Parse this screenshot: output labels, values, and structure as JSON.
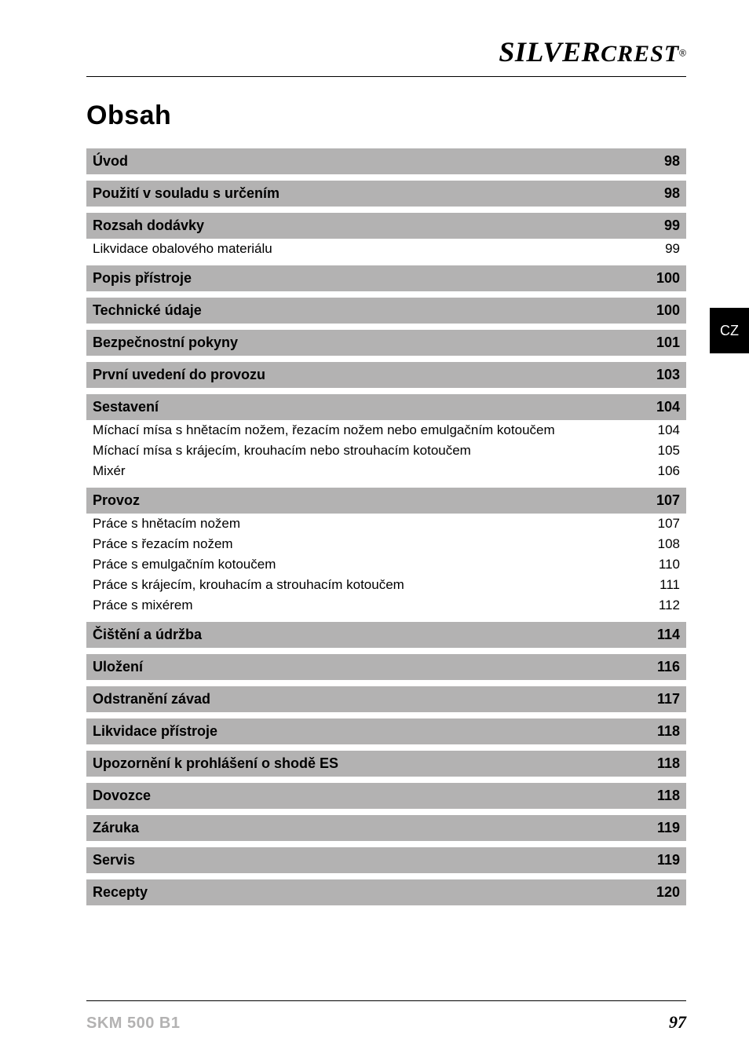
{
  "brand": {
    "main": "SILVER",
    "sub": "CREST",
    "reg": "®"
  },
  "colors": {
    "section_bg": "#b3b2b2",
    "text": "#000000",
    "footer_model": "#b3b2b2",
    "tab_bg": "#000000",
    "tab_text": "#ffffff",
    "page_bg": "#ffffff"
  },
  "typography": {
    "title_fontsize": 34,
    "section_fontsize": 18,
    "sub_fontsize": 17,
    "brand_main_fontsize": 36,
    "brand_sub_fontsize": 30,
    "footer_model_fontsize": 20,
    "footer_page_fontsize": 22,
    "tab_fontsize": 18
  },
  "toc_title": "Obsah",
  "side_tab": "CZ",
  "footer": {
    "model": "SKM 500 B1",
    "page": "97"
  },
  "toc": [
    {
      "type": "section",
      "label": "Úvod",
      "page": "98"
    },
    {
      "type": "section",
      "label": "Použití v souladu s určením",
      "page": "98"
    },
    {
      "type": "section",
      "label": "Rozsah dodávky",
      "page": "99"
    },
    {
      "type": "sub",
      "label": "Likvidace obalového materiálu",
      "page": "99"
    },
    {
      "type": "section",
      "label": "Popis přístroje",
      "page": "100"
    },
    {
      "type": "section",
      "label": "Technické údaje",
      "page": "100"
    },
    {
      "type": "section",
      "label": "Bezpečnostní pokyny",
      "page": "101"
    },
    {
      "type": "section",
      "label": "První uvedení do provozu",
      "page": "103"
    },
    {
      "type": "section",
      "label": "Sestavení",
      "page": "104"
    },
    {
      "type": "sub",
      "label": "Míchací mísa s hnětacím nožem, řezacím nožem nebo emulgačním kotoučem",
      "page": "104"
    },
    {
      "type": "sub",
      "label": "Míchací mísa s krájecím, krouhacím nebo strouhacím kotoučem",
      "page": "105"
    },
    {
      "type": "sub",
      "label": "Mixér",
      "page": "106"
    },
    {
      "type": "section",
      "label": "Provoz",
      "page": "107"
    },
    {
      "type": "sub",
      "label": "Práce s hnětacím nožem",
      "page": "107"
    },
    {
      "type": "sub",
      "label": "Práce s řezacím nožem",
      "page": "108"
    },
    {
      "type": "sub",
      "label": "Práce s emulgačním kotoučem",
      "page": "110"
    },
    {
      "type": "sub",
      "label": "Práce s krájecím, krouhacím a strouhacím kotoučem",
      "page": "111"
    },
    {
      "type": "sub",
      "label": "Práce s mixérem",
      "page": "112"
    },
    {
      "type": "section",
      "label": "Čištění a údržba",
      "page": "114"
    },
    {
      "type": "section",
      "label": "Uložení",
      "page": "116"
    },
    {
      "type": "section",
      "label": "Odstranění závad",
      "page": "117"
    },
    {
      "type": "section",
      "label": "Likvidace přístroje",
      "page": "118"
    },
    {
      "type": "section",
      "label": "Upozornění k prohlášení o shodě ES",
      "page": "118"
    },
    {
      "type": "section",
      "label": "Dovozce",
      "page": "118"
    },
    {
      "type": "section",
      "label": "Záruka",
      "page": "119"
    },
    {
      "type": "section",
      "label": "Servis",
      "page": "119"
    },
    {
      "type": "section",
      "label": "Recepty",
      "page": "120"
    }
  ]
}
